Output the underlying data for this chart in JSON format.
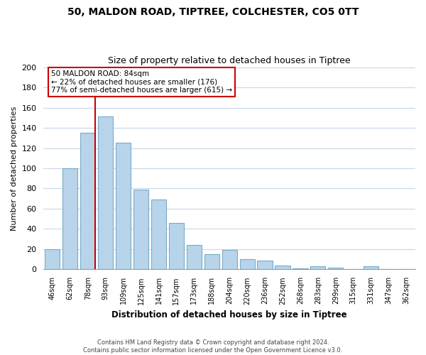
{
  "title": "50, MALDON ROAD, TIPTREE, COLCHESTER, CO5 0TT",
  "subtitle": "Size of property relative to detached houses in Tiptree",
  "xlabel": "Distribution of detached houses by size in Tiptree",
  "ylabel": "Number of detached properties",
  "categories": [
    "46sqm",
    "62sqm",
    "78sqm",
    "93sqm",
    "109sqm",
    "125sqm",
    "141sqm",
    "157sqm",
    "173sqm",
    "188sqm",
    "204sqm",
    "220sqm",
    "236sqm",
    "252sqm",
    "268sqm",
    "283sqm",
    "299sqm",
    "315sqm",
    "331sqm",
    "347sqm",
    "362sqm"
  ],
  "values": [
    20,
    100,
    135,
    151,
    125,
    79,
    69,
    46,
    24,
    15,
    19,
    10,
    9,
    4,
    1,
    3,
    2,
    0,
    3,
    0,
    0
  ],
  "bar_color": "#b8d4ea",
  "bar_edge_color": "#7aaac8",
  "highlight_line_index": 2,
  "highlight_line_color": "#cc0000",
  "annotation_line1": "50 MALDON ROAD: 84sqm",
  "annotation_line2": "← 22% of detached houses are smaller (176)",
  "annotation_line3": "77% of semi-detached houses are larger (615) →",
  "ylim": [
    0,
    200
  ],
  "yticks": [
    0,
    20,
    40,
    60,
    80,
    100,
    120,
    140,
    160,
    180,
    200
  ],
  "background_color": "#ffffff",
  "grid_color": "#c8d8e8",
  "footer_line1": "Contains HM Land Registry data © Crown copyright and database right 2024.",
  "footer_line2": "Contains public sector information licensed under the Open Government Licence v3.0."
}
